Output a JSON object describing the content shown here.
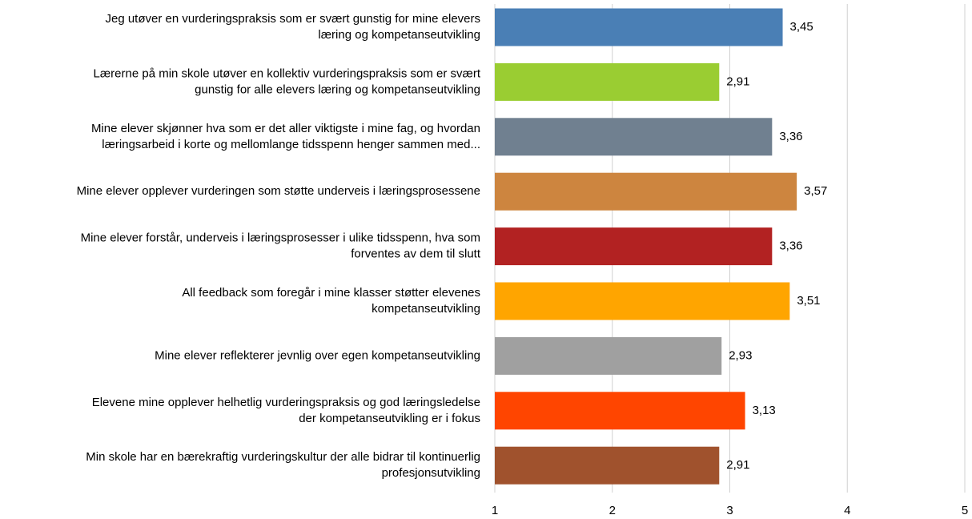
{
  "chart_data": {
    "type": "bar",
    "orientation": "horizontal",
    "categories": [
      [
        "Jeg utøver en vurderingspraksis som er svært gunstig for mine elevers",
        "læring og kompetanseutvikling"
      ],
      [
        "Lærerne på min skole utøver en kollektiv vurderingspraksis som er svært",
        "gunstig for alle elevers læring og kompetanseutvikling"
      ],
      [
        "Mine elever skjønner hva som er det aller viktigste i mine fag, og hvordan",
        "læringsarbeid i korte og mellomlange tidsspenn henger sammen med..."
      ],
      [
        "Mine elever opplever vurderingen som støtte underveis i læringsprosessene"
      ],
      [
        "Mine elever forstår, underveis i læringsprosesser i ulike tidsspenn, hva som",
        "forventes av dem til slutt"
      ],
      [
        "All feedback som foregår i mine klasser støtter elevenes",
        "kompetanseutvikling"
      ],
      [
        "Mine elever reflekterer jevnlig over egen kompetanseutvikling"
      ],
      [
        "Elevene mine opplever helhetlig vurderingspraksis og god læringsledelse",
        "der kompetanseutvikling er i fokus"
      ],
      [
        "Min skole har en bærekraftig vurderingskultur der alle bidrar til kontinuerlig",
        "profesjonsutvikling"
      ]
    ],
    "values": [
      3.45,
      2.91,
      3.36,
      3.57,
      3.36,
      3.51,
      2.93,
      3.13,
      2.91
    ],
    "value_labels": [
      "3,45",
      "2,91",
      "3,36",
      "3,57",
      "3,36",
      "3,51",
      "2,93",
      "3,13",
      "2,91"
    ],
    "colors": [
      "#4a7fb5",
      "#9acd32",
      "#708090",
      "#cd853f",
      "#b22222",
      "#ffa500",
      "#a0a0a0",
      "#ff4500",
      "#a0522d"
    ],
    "xlim": [
      1,
      5
    ],
    "xticks": [
      1,
      2,
      3,
      4,
      5
    ],
    "grid": true
  }
}
